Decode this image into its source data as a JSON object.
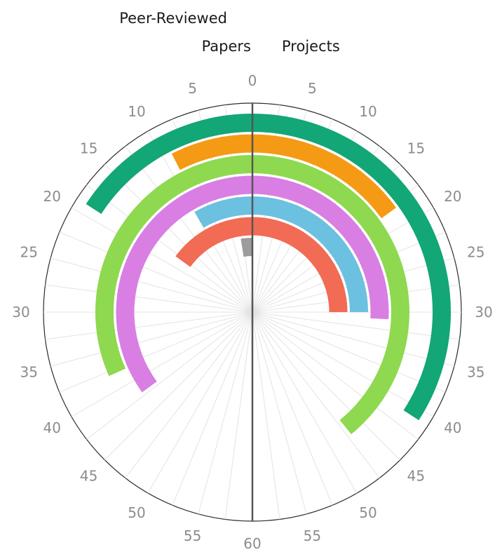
{
  "chart_data": {
    "type": "radial-bar",
    "scale": {
      "min": 0,
      "max": 60,
      "tick_step": 5,
      "ticks": [
        0,
        5,
        10,
        15,
        20,
        25,
        30,
        35,
        40,
        45,
        50,
        55,
        60
      ]
    },
    "left_half": {
      "title_line1": "Peer-Reviewed",
      "title_line2": "Papers"
    },
    "right_half": {
      "title": "Projects"
    },
    "series": [
      {
        "color": "#13a676",
        "left": 19,
        "right": 41
      },
      {
        "color": "#f59a14",
        "left": 9,
        "right": 18
      },
      {
        "color": "#8ed94f",
        "left": 38,
        "right": 47
      },
      {
        "color": "#d97ee3",
        "left": 42,
        "right": 31
      },
      {
        "color": "#6cc0e0",
        "left": 10,
        "right": 30
      },
      {
        "color": "#f26b55",
        "left": 18,
        "right": 30
      },
      {
        "color": "#9c9c9c",
        "left": 3,
        "right": 0
      }
    ]
  }
}
